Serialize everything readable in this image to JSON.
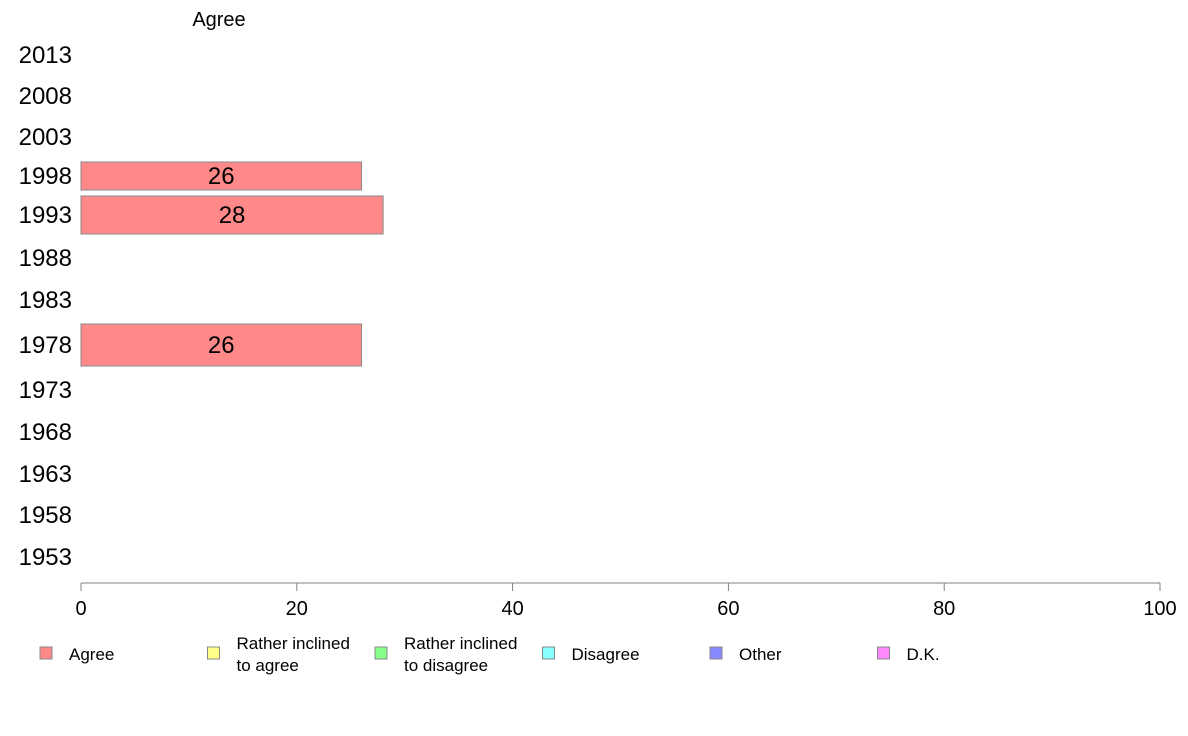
{
  "chart_data": {
    "type": "bar",
    "orientation": "horizontal",
    "column_header": "Agree",
    "categories": [
      "2013",
      "2008",
      "2003",
      "1998",
      "1993",
      "1988",
      "1983",
      "1978",
      "1973",
      "1968",
      "1963",
      "1958",
      "1953"
    ],
    "series": [
      {
        "name": "Agree",
        "color": "#ff8888",
        "values": [
          null,
          null,
          null,
          26,
          28,
          null,
          null,
          26,
          null,
          null,
          null,
          null,
          null
        ]
      }
    ],
    "xlim": [
      0,
      100
    ],
    "xticks": [
      "0",
      "20",
      "40",
      "60",
      "80",
      "100"
    ],
    "grid": false,
    "legend_position": "bottom",
    "legend": [
      {
        "lines": [
          "Agree"
        ],
        "color": "#ff8888"
      },
      {
        "lines": [
          "Rather inclined",
          "to agree"
        ],
        "color": "#ffff88"
      },
      {
        "lines": [
          "Rather inclined",
          "to disagree"
        ],
        "color": "#88ff88"
      },
      {
        "lines": [
          "Disagree"
        ],
        "color": "#88ffff"
      },
      {
        "lines": [
          "Other"
        ],
        "color": "#8888ff"
      },
      {
        "lines": [
          "D.K."
        ],
        "color": "#ff88ff"
      }
    ]
  }
}
